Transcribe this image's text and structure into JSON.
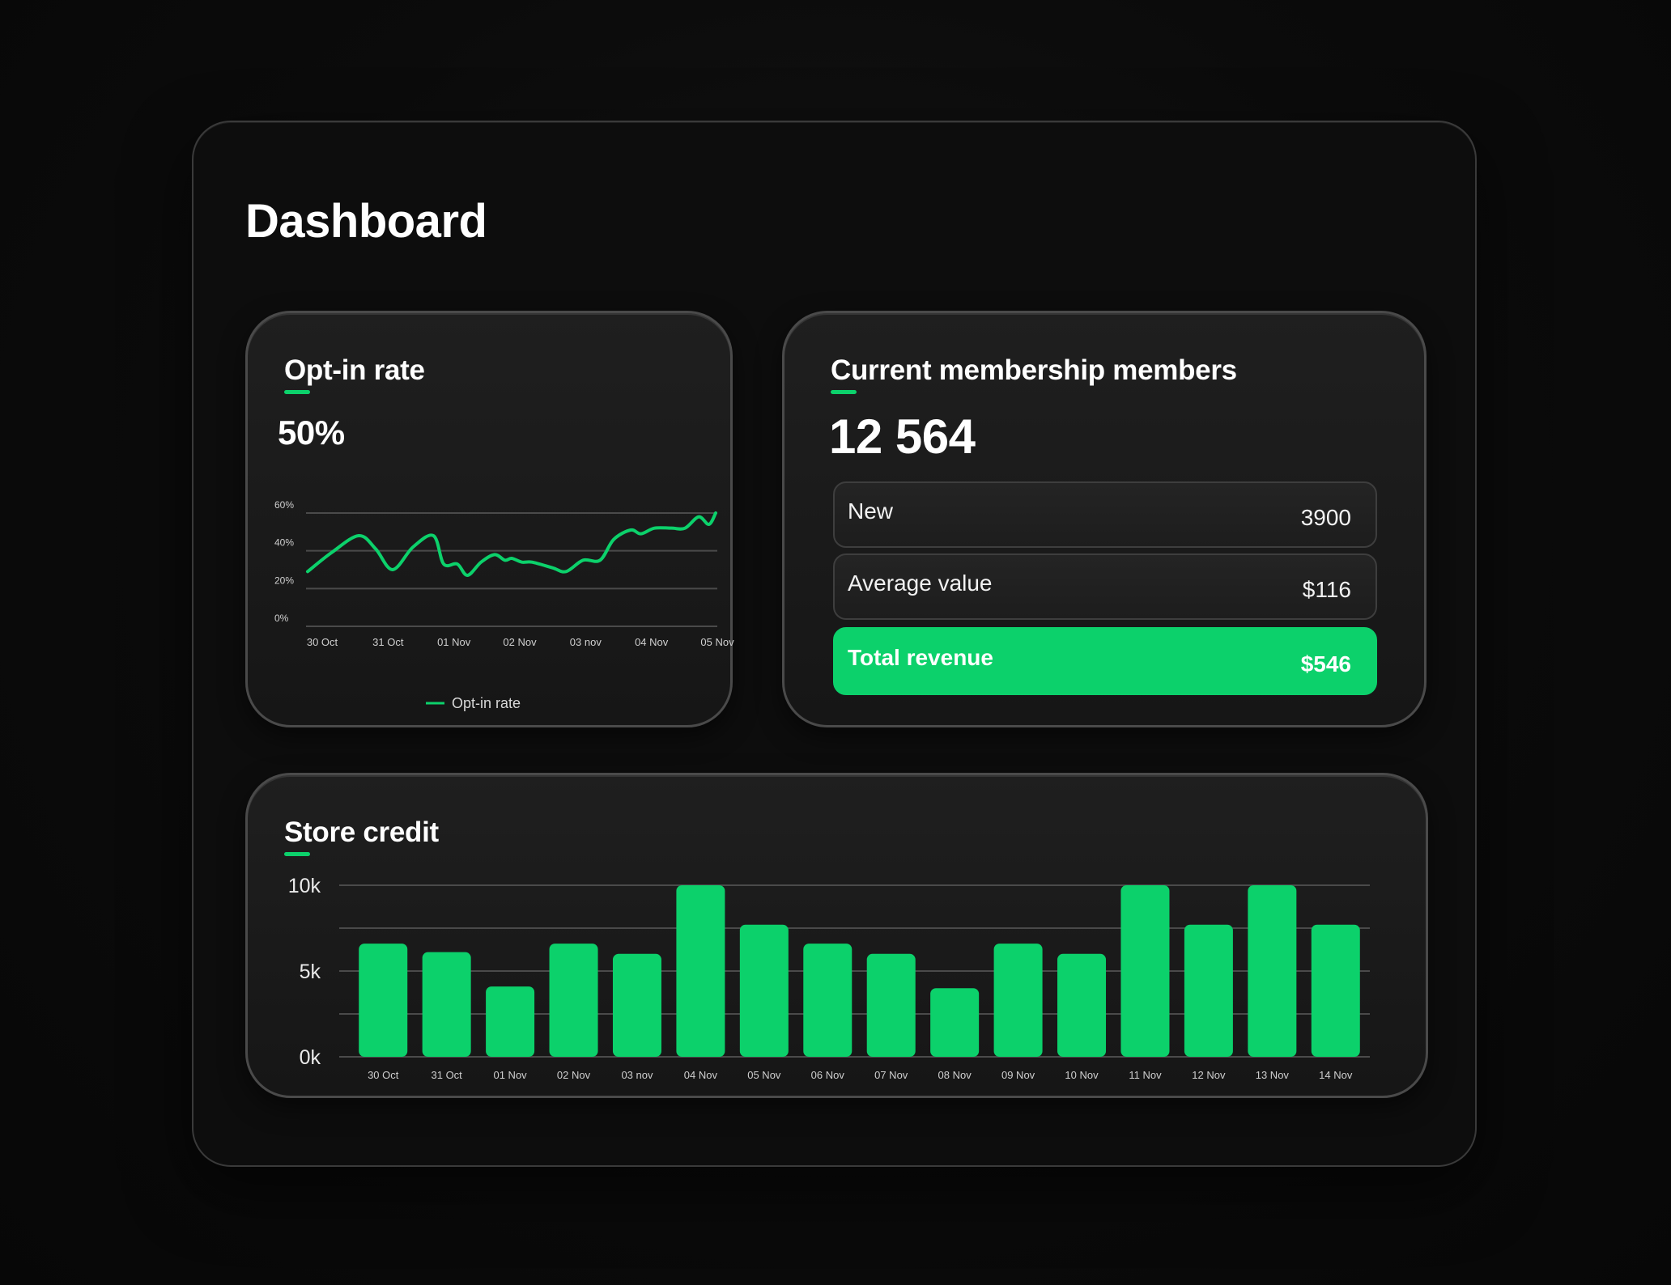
{
  "page": {
    "title": "Dashboard"
  },
  "colors": {
    "accent": "#0cd16b",
    "background": "#0b0b0b",
    "card": "#1b1b1b",
    "grid": "#4a4a4a"
  },
  "optin": {
    "title": "Opt-in rate",
    "value": "50%",
    "legend": "Opt-in rate"
  },
  "members": {
    "title": "Current membership members",
    "value": "12 564",
    "rows": [
      {
        "label": "New",
        "value": "3900"
      },
      {
        "label": "Average value",
        "value": "$116"
      }
    ],
    "total": {
      "label": "Total revenue",
      "value": "$546"
    }
  },
  "credit": {
    "title": "Store credit"
  },
  "chart_data": [
    {
      "type": "line",
      "title": "Opt-in rate",
      "series": [
        {
          "name": "Opt-in rate",
          "x": [
            0,
            0.35,
            0.75,
            1.0,
            1.25,
            1.55,
            1.85,
            2.0,
            2.2,
            2.35,
            2.55,
            2.75,
            2.9,
            3.0,
            3.15,
            3.3,
            3.6,
            3.8,
            4.05,
            4.3,
            4.5,
            4.75,
            4.9,
            5.1,
            5.35,
            5.55,
            5.75,
            5.9,
            6.0
          ],
          "values": [
            29,
            39,
            48,
            41,
            30,
            42,
            48,
            33,
            33,
            27,
            34,
            38,
            35,
            36,
            34,
            34,
            31,
            29,
            35,
            35,
            46,
            51,
            49,
            52,
            52,
            52,
            58,
            54,
            60
          ]
        }
      ],
      "categories": [
        "30 Oct",
        "31 Oct",
        "01 Nov",
        "02 Nov",
        "03 nov",
        "04 Nov",
        "05 Nov"
      ],
      "yticks": [
        "0%",
        "20%",
        "40%",
        "60%"
      ],
      "ylim": [
        0,
        60
      ],
      "xlabel": "",
      "ylabel": "",
      "grid": true,
      "legend": "bottom-center"
    },
    {
      "type": "bar",
      "title": "Store credit",
      "categories": [
        "30 Oct",
        "31 Oct",
        "01 Nov",
        "02 Nov",
        "03 nov",
        "04 Nov",
        "05 Nov",
        "06 Nov",
        "07 Nov",
        "08 Nov",
        "09 Nov",
        "10 Nov",
        "11 Nov",
        "12 Nov",
        "13 Nov",
        "14 Nov"
      ],
      "values": [
        6600,
        6100,
        4100,
        6600,
        6000,
        10000,
        7700,
        6600,
        6000,
        4000,
        6600,
        6000,
        10000,
        7700,
        10000,
        7700
      ],
      "yticks": [
        "10k",
        "5k",
        "0k"
      ],
      "ylim": [
        0,
        10000
      ],
      "xlabel": "",
      "ylabel": "",
      "grid": true
    }
  ]
}
